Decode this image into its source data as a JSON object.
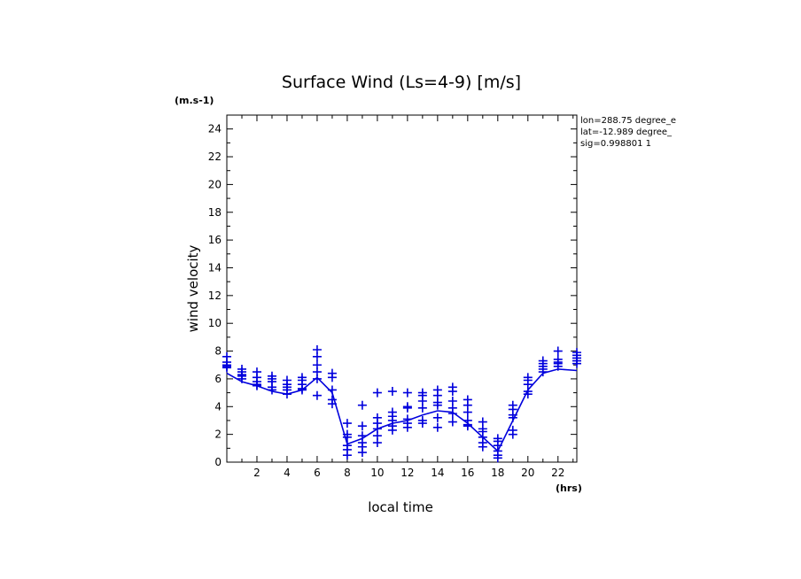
{
  "chart_data": {
    "type": "scatter",
    "title": "Surface Wind  (Ls=4-9) [m/s]",
    "xlabel": "local time",
    "ylabel": "wind velocity",
    "x_unit": "(hrs)",
    "y_unit": "(m.s-1)",
    "xlim": [
      0,
      23.25
    ],
    "ylim": [
      0,
      25
    ],
    "x_ticks": [
      2,
      4,
      6,
      8,
      10,
      12,
      14,
      16,
      18,
      20,
      22
    ],
    "y_ticks": [
      0,
      2,
      4,
      6,
      8,
      10,
      12,
      14,
      16,
      18,
      20,
      22,
      24
    ],
    "grid": false,
    "color": "#0000dd",
    "info_lines": [
      "lon=288.75 degree_e",
      "lat=-12.989 degree_",
      "sig=0.998801 1"
    ],
    "series": [
      {
        "style": "line",
        "x": [
          0,
          1,
          2,
          3,
          4,
          5,
          6,
          7,
          8,
          9,
          10,
          11,
          12,
          13,
          14,
          15,
          16,
          17,
          18,
          19,
          20,
          21,
          22,
          23.25
        ],
        "values": [
          6.4,
          5.8,
          5.5,
          5.1,
          4.9,
          5.2,
          6.1,
          5.0,
          1.3,
          1.7,
          2.4,
          2.8,
          3.0,
          3.4,
          3.7,
          3.6,
          2.8,
          1.8,
          0.8,
          3.0,
          5.2,
          6.4,
          6.7,
          6.6
        ]
      },
      {
        "style": "markers",
        "points": [
          [
            0,
            7.2
          ],
          [
            0,
            7.0
          ],
          [
            0,
            6.9
          ],
          [
            0,
            6.8
          ],
          [
            0,
            7.6
          ],
          [
            1,
            6.7
          ],
          [
            1,
            6.5
          ],
          [
            1,
            6.3
          ],
          [
            1,
            6.2
          ],
          [
            1,
            6.0
          ],
          [
            2,
            6.5
          ],
          [
            2,
            6.1
          ],
          [
            2,
            5.8
          ],
          [
            2,
            5.6
          ],
          [
            2,
            5.5
          ],
          [
            3,
            6.2
          ],
          [
            3,
            6.0
          ],
          [
            3,
            5.8
          ],
          [
            3,
            5.4
          ],
          [
            3,
            5.2
          ],
          [
            4,
            5.9
          ],
          [
            4,
            5.6
          ],
          [
            4,
            5.4
          ],
          [
            4,
            5.2
          ],
          [
            4,
            4.9
          ],
          [
            5,
            6.1
          ],
          [
            5,
            5.9
          ],
          [
            5,
            5.6
          ],
          [
            5,
            5.3
          ],
          [
            5,
            5.2
          ],
          [
            6,
            8.1
          ],
          [
            6,
            7.6
          ],
          [
            6,
            7.0
          ],
          [
            6,
            6.5
          ],
          [
            6,
            6.0
          ],
          [
            6,
            4.8
          ],
          [
            7,
            6.4
          ],
          [
            7,
            6.1
          ],
          [
            7,
            5.2
          ],
          [
            7,
            4.5
          ],
          [
            7,
            4.2
          ],
          [
            8,
            2.8
          ],
          [
            8,
            2.0
          ],
          [
            8,
            1.8
          ],
          [
            8,
            1.2
          ],
          [
            8,
            0.9
          ],
          [
            8,
            0.5
          ],
          [
            9,
            4.1
          ],
          [
            9,
            2.6
          ],
          [
            9,
            1.9
          ],
          [
            9,
            1.4
          ],
          [
            9,
            1.1
          ],
          [
            9,
            0.7
          ],
          [
            10,
            5.0
          ],
          [
            10,
            3.2
          ],
          [
            10,
            2.8
          ],
          [
            10,
            2.4
          ],
          [
            10,
            1.9
          ],
          [
            10,
            1.4
          ],
          [
            11,
            5.1
          ],
          [
            11,
            3.6
          ],
          [
            11,
            3.3
          ],
          [
            11,
            3.0
          ],
          [
            11,
            2.6
          ],
          [
            11,
            2.3
          ],
          [
            12,
            5.0
          ],
          [
            12,
            4.0
          ],
          [
            12,
            3.9
          ],
          [
            12,
            3.1
          ],
          [
            12,
            2.8
          ],
          [
            12,
            2.5
          ],
          [
            13,
            5.0
          ],
          [
            13,
            4.8
          ],
          [
            13,
            4.4
          ],
          [
            13,
            3.9
          ],
          [
            13,
            3.0
          ],
          [
            13,
            2.8
          ],
          [
            14,
            5.2
          ],
          [
            14,
            4.8
          ],
          [
            14,
            4.3
          ],
          [
            14,
            4.1
          ],
          [
            14,
            3.2
          ],
          [
            14,
            2.5
          ],
          [
            15,
            5.4
          ],
          [
            15,
            5.1
          ],
          [
            15,
            4.4
          ],
          [
            15,
            3.9
          ],
          [
            15,
            3.5
          ],
          [
            15,
            2.9
          ],
          [
            16,
            4.5
          ],
          [
            16,
            4.1
          ],
          [
            16,
            3.6
          ],
          [
            16,
            3.0
          ],
          [
            16,
            2.7
          ],
          [
            16,
            2.6
          ],
          [
            17,
            2.9
          ],
          [
            17,
            2.4
          ],
          [
            17,
            2.2
          ],
          [
            17,
            1.8
          ],
          [
            17,
            1.4
          ],
          [
            17,
            1.1
          ],
          [
            18,
            1.7
          ],
          [
            18,
            1.5
          ],
          [
            18,
            1.2
          ],
          [
            18,
            0.8
          ],
          [
            18,
            0.5
          ],
          [
            18,
            0.3
          ],
          [
            19,
            4.1
          ],
          [
            19,
            3.8
          ],
          [
            19,
            3.4
          ],
          [
            19,
            3.2
          ],
          [
            19,
            2.3
          ],
          [
            19,
            2.0
          ],
          [
            20,
            6.1
          ],
          [
            20,
            5.9
          ],
          [
            20,
            5.6
          ],
          [
            20,
            5.1
          ],
          [
            20,
            4.9
          ],
          [
            21,
            7.3
          ],
          [
            21,
            7.1
          ],
          [
            21,
            6.9
          ],
          [
            21,
            6.7
          ],
          [
            21,
            6.5
          ],
          [
            22,
            8.0
          ],
          [
            22,
            7.4
          ],
          [
            22,
            7.2
          ],
          [
            22,
            7.1
          ],
          [
            22,
            6.9
          ],
          [
            23.25,
            7.9
          ],
          [
            23.25,
            7.7
          ],
          [
            23.25,
            7.5
          ],
          [
            23.25,
            7.3
          ],
          [
            23.25,
            7.1
          ]
        ]
      }
    ]
  }
}
